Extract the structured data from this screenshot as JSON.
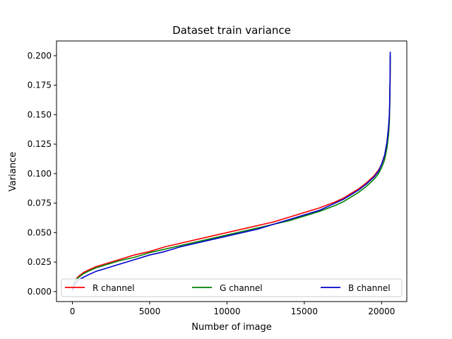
{
  "chart_data": {
    "type": "line",
    "title": "Dataset train variance",
    "xlabel": "Number of image",
    "ylabel": "Variance",
    "xlim": [
      -1030,
      21630
    ],
    "ylim": [
      -0.0085,
      0.2125
    ],
    "xticks": [
      0,
      5000,
      10000,
      15000,
      20000
    ],
    "xtick_labels": [
      "0",
      "5000",
      "10000",
      "15000",
      "20000"
    ],
    "yticks": [
      0.0,
      0.025,
      0.05,
      0.075,
      0.1,
      0.125,
      0.15,
      0.175,
      0.2
    ],
    "ytick_labels": [
      "0.000",
      "0.025",
      "0.050",
      "0.075",
      "0.100",
      "0.125",
      "0.150",
      "0.175",
      "0.200"
    ],
    "grid": false,
    "legend_position": "lower center",
    "series": [
      {
        "name": "R channel",
        "color": "#ff0000",
        "x": [
          0,
          50,
          100,
          200,
          400,
          700,
          1000,
          1500,
          2000,
          3000,
          4000,
          5000,
          6000,
          7000,
          8000,
          9000,
          10000,
          11000,
          12000,
          13000,
          14000,
          15000,
          16000,
          17000,
          17500,
          18000,
          18500,
          19000,
          19500,
          19800,
          20000,
          20200,
          20350,
          20450,
          20500,
          20530,
          20550,
          20560
        ],
        "y": [
          0.001,
          0.004,
          0.007,
          0.01,
          0.013,
          0.016,
          0.018,
          0.021,
          0.023,
          0.027,
          0.031,
          0.034,
          0.038,
          0.041,
          0.044,
          0.047,
          0.05,
          0.053,
          0.056,
          0.059,
          0.063,
          0.067,
          0.071,
          0.076,
          0.079,
          0.083,
          0.087,
          0.092,
          0.098,
          0.103,
          0.108,
          0.115,
          0.124,
          0.135,
          0.145,
          0.16,
          0.18,
          0.2
        ]
      },
      {
        "name": "G channel",
        "color": "#008000",
        "x": [
          0,
          50,
          100,
          200,
          400,
          700,
          1000,
          1500,
          2000,
          3000,
          4000,
          5000,
          6000,
          7000,
          8000,
          9000,
          10000,
          11000,
          12000,
          13000,
          14000,
          15000,
          16000,
          17000,
          17500,
          18000,
          18500,
          19000,
          19500,
          19800,
          20000,
          20200,
          20350,
          20450,
          20500,
          20530,
          20550,
          20560
        ],
        "y": [
          0.001,
          0.004,
          0.007,
          0.01,
          0.012,
          0.015,
          0.017,
          0.02,
          0.022,
          0.026,
          0.029,
          0.033,
          0.036,
          0.039,
          0.042,
          0.045,
          0.048,
          0.051,
          0.054,
          0.057,
          0.06,
          0.064,
          0.068,
          0.073,
          0.076,
          0.08,
          0.084,
          0.089,
          0.095,
          0.1,
          0.105,
          0.112,
          0.122,
          0.133,
          0.144,
          0.16,
          0.18,
          0.2
        ]
      },
      {
        "name": "B channel",
        "color": "#0000cc",
        "x": [
          0,
          50,
          100,
          200,
          400,
          700,
          1000,
          1500,
          2000,
          3000,
          4000,
          5000,
          6000,
          7000,
          8000,
          9000,
          10000,
          11000,
          12000,
          13000,
          14000,
          15000,
          16000,
          17000,
          17500,
          18000,
          18500,
          19000,
          19500,
          19800,
          20000,
          20200,
          20350,
          20450,
          20500,
          20530,
          20550,
          20560
        ],
        "y": [
          0.001,
          0.002,
          0.004,
          0.007,
          0.01,
          0.012,
          0.014,
          0.017,
          0.019,
          0.023,
          0.027,
          0.031,
          0.034,
          0.038,
          0.041,
          0.044,
          0.047,
          0.05,
          0.053,
          0.057,
          0.061,
          0.065,
          0.069,
          0.075,
          0.078,
          0.082,
          0.086,
          0.091,
          0.097,
          0.102,
          0.108,
          0.116,
          0.127,
          0.14,
          0.15,
          0.165,
          0.185,
          0.203
        ]
      }
    ]
  }
}
